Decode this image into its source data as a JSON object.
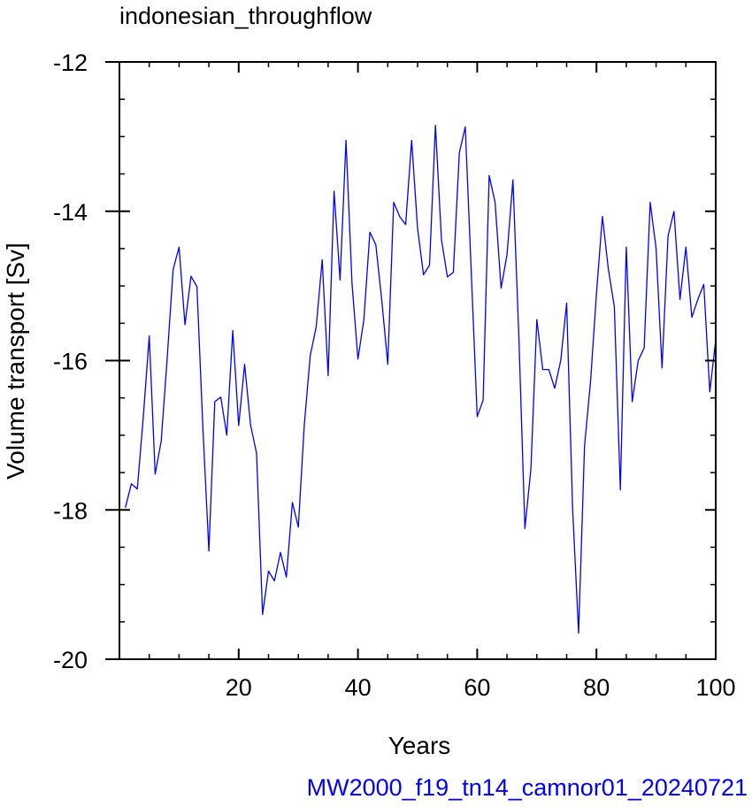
{
  "chart_data": {
    "type": "line",
    "title": "indonesian_throughflow",
    "xlabel": "Years",
    "ylabel": "Volume transport [Sv]",
    "footer": "MW2000_f19_tn14_camnor01_20240721",
    "xlim": [
      0,
      100
    ],
    "ylim": [
      -20,
      -12
    ],
    "x_ticks": [
      20,
      40,
      60,
      80,
      100
    ],
    "x_tick_labels": [
      "20",
      "40",
      "60",
      "80",
      "100"
    ],
    "y_ticks": [
      -20,
      -18,
      -16,
      -14,
      -12
    ],
    "y_tick_labels": [
      "-20",
      "-18",
      "-16",
      "-14",
      "-12"
    ],
    "grid": false,
    "legend": "none",
    "colors": {
      "line": "#0000ff",
      "footer": "#0000ff",
      "axes": "#000000"
    },
    "series": [
      {
        "x": [
          1,
          2,
          3,
          4,
          5,
          6,
          7,
          8,
          9,
          10,
          11,
          12,
          13,
          14,
          15,
          16,
          17,
          18,
          19,
          20,
          21,
          22,
          23,
          24,
          25,
          26,
          27,
          28,
          29,
          30,
          31,
          32,
          33,
          34,
          35,
          36,
          37,
          38,
          39,
          40,
          41,
          42,
          43,
          44,
          45,
          46,
          47,
          48,
          49,
          50,
          51,
          52,
          53,
          54,
          55,
          56,
          57,
          58,
          59,
          60,
          61,
          62,
          63,
          64,
          65,
          66,
          67,
          68,
          69,
          70,
          71,
          72,
          73,
          74,
          75,
          76,
          77,
          78,
          79,
          80,
          81,
          82,
          83,
          84,
          85,
          86,
          87,
          88,
          89,
          90,
          91,
          92,
          93,
          94,
          95,
          96,
          97,
          98,
          99,
          100
        ],
        "values": [
          -17.97,
          -17.65,
          -17.72,
          -16.75,
          -15.67,
          -17.52,
          -17.08,
          -15.98,
          -14.78,
          -14.48,
          -15.52,
          -14.87,
          -15.01,
          -16.92,
          -18.55,
          -16.55,
          -16.49,
          -17.0,
          -15.6,
          -16.87,
          -16.05,
          -16.87,
          -17.24,
          -19.4,
          -18.82,
          -18.95,
          -18.57,
          -18.9,
          -17.9,
          -18.23,
          -16.87,
          -15.93,
          -15.55,
          -14.65,
          -16.2,
          -13.73,
          -14.92,
          -13.05,
          -14.97,
          -15.98,
          -15.45,
          -14.28,
          -14.45,
          -15.2,
          -16.05,
          -13.88,
          -14.07,
          -14.18,
          -13.05,
          -14.23,
          -14.85,
          -14.72,
          -12.85,
          -14.38,
          -14.88,
          -14.82,
          -13.22,
          -12.87,
          -14.82,
          -16.75,
          -16.53,
          -13.52,
          -13.88,
          -15.03,
          -14.58,
          -13.58,
          -15.72,
          -18.25,
          -17.45,
          -15.45,
          -16.12,
          -16.12,
          -16.37,
          -16.0,
          -15.23,
          -17.97,
          -19.65,
          -17.15,
          -16.28,
          -15.1,
          -14.07,
          -14.78,
          -15.28,
          -17.73,
          -14.48,
          -16.55,
          -16.0,
          -15.83,
          -13.88,
          -14.5,
          -16.1,
          -14.33,
          -14.0,
          -15.18,
          -14.48,
          -15.42,
          -15.18,
          -14.98,
          -16.42,
          -15.72
        ]
      }
    ]
  }
}
